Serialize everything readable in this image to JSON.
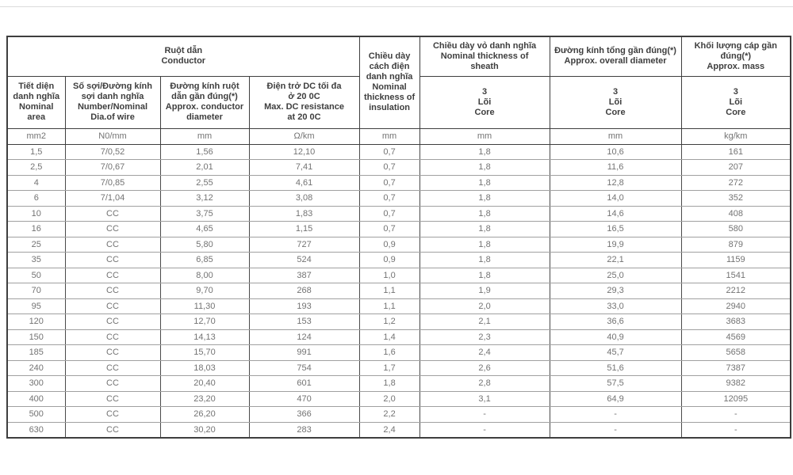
{
  "table": {
    "title_semantic": "3-core cable specification table",
    "header": {
      "conductor": "Ruột dẫn\nConductor",
      "insulation": "Chiều dày\ncách điện\ndanh nghĩa\nNominal\nthickness of\ninsulation",
      "sheath": "Chiều dày vỏ danh nghĩa\nNominal thickness of\nsheath",
      "diameter": "Đường kính tổng gần đúng(*)\nApprox. overall diameter",
      "mass": "Khối lượng cáp gần\nđúng(*)\nApprox. mass",
      "sub": [
        "Tiết diện\ndanh nghĩa\nNominal\narea",
        "Số sợi/Đường kính\nsợi danh nghĩa\nNumber/Nominal\nDia.of wire",
        "Đường kính ruột\ndẫn gần đúng(*)\nApprox. conductor\ndiameter",
        "Điện trở DC tối đa\nở 20 0C\nMax. DC resistance\nat 20 0C"
      ],
      "core": "3\nLõi\nCore"
    },
    "units": [
      "mm2",
      "N0/mm",
      "mm",
      "Ω/km",
      "mm",
      "mm",
      "mm",
      "kg/km"
    ],
    "rows": [
      [
        "1,5",
        "7/0,52",
        "1,56",
        "12,10",
        "0,7",
        "1,8",
        "10,6",
        "161"
      ],
      [
        "2,5",
        "7/0,67",
        "2,01",
        "7,41",
        "0,7",
        "1,8",
        "11,6",
        "207"
      ],
      [
        "4",
        "7/0,85",
        "2,55",
        "4,61",
        "0,7",
        "1,8",
        "12,8",
        "272"
      ],
      [
        "6",
        "7/1,04",
        "3,12",
        "3,08",
        "0,7",
        "1,8",
        "14,0",
        "352"
      ],
      [
        "10",
        "CC",
        "3,75",
        "1,83",
        "0,7",
        "1,8",
        "14,6",
        "408"
      ],
      [
        "16",
        "CC",
        "4,65",
        "1,15",
        "0,7",
        "1,8",
        "16,5",
        "580"
      ],
      [
        "25",
        "CC",
        "5,80",
        "727",
        "0,9",
        "1,8",
        "19,9",
        "879"
      ],
      [
        "35",
        "CC",
        "6,85",
        "524",
        "0,9",
        "1,8",
        "22,1",
        "1159"
      ],
      [
        "50",
        "CC",
        "8,00",
        "387",
        "1,0",
        "1,8",
        "25,0",
        "1541"
      ],
      [
        "70",
        "CC",
        "9,70",
        "268",
        "1,1",
        "1,9",
        "29,3",
        "2212"
      ],
      [
        "95",
        "CC",
        "11,30",
        "193",
        "1,1",
        "2,0",
        "33,0",
        "2940"
      ],
      [
        "120",
        "CC",
        "12,70",
        "153",
        "1,2",
        "2,1",
        "36,6",
        "3683"
      ],
      [
        "150",
        "CC",
        "14,13",
        "124",
        "1,4",
        "2,3",
        "40,9",
        "4569"
      ],
      [
        "185",
        "CC",
        "15,70",
        "991",
        "1,6",
        "2,4",
        "45,7",
        "5658"
      ],
      [
        "240",
        "CC",
        "18,03",
        "754",
        "1,7",
        "2,6",
        "51,6",
        "7387"
      ],
      [
        "300",
        "CC",
        "20,40",
        "601",
        "1,8",
        "2,8",
        "57,5",
        "9382"
      ],
      [
        "400",
        "CC",
        "23,20",
        "470",
        "2,0",
        "3,1",
        "64,9",
        "12095"
      ],
      [
        "500",
        "CC",
        "26,20",
        "366",
        "2,2",
        "-",
        "-",
        "-"
      ],
      [
        "630",
        "CC",
        "30,20",
        "283",
        "2,4",
        "-",
        "-",
        "-"
      ]
    ]
  },
  "colors": {
    "header_text": "#3e3e3e",
    "body_text": "#737373",
    "border_dark": "#3e3e3e",
    "row_separator": "#a0a0a0",
    "top_rule": "#dcdcdc"
  }
}
